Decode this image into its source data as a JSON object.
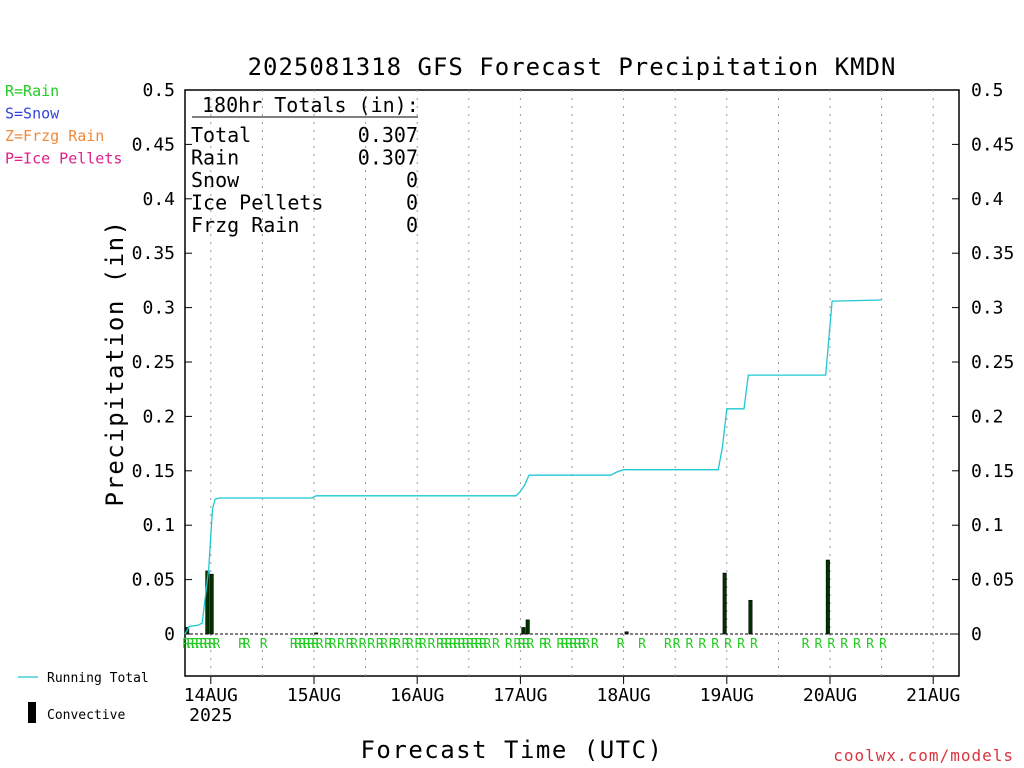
{
  "chart_data": {
    "type": "bar",
    "title": "2025081318 GFS Forecast Precipitation KMDN",
    "ylabel": "Precipitation (in)",
    "xlabel": "Forecast Time (UTC)",
    "ylim": [
      0,
      0.5
    ],
    "yticks": [
      "0",
      "0.05",
      "0.1",
      "0.15",
      "0.2",
      "0.25",
      "0.3",
      "0.35",
      "0.4",
      "0.45",
      "0.5"
    ],
    "xlim_hours": [
      18,
      180
    ],
    "xticks": [
      {
        "hour": 24,
        "label": "14AUG",
        "sub": "2025"
      },
      {
        "hour": 48,
        "label": "15AUG",
        "sub": ""
      },
      {
        "hour": 72,
        "label": "16AUG",
        "sub": ""
      },
      {
        "hour": 96,
        "label": "17AUG",
        "sub": ""
      },
      {
        "hour": 120,
        "label": "18AUG",
        "sub": ""
      },
      {
        "hour": 144,
        "label": "19AUG",
        "sub": ""
      },
      {
        "hour": 168,
        "label": "20AUG",
        "sub": ""
      },
      {
        "hour": 192,
        "label": "21AUG",
        "sub": ""
      }
    ],
    "grid": "vertical dotted every 12h",
    "ptype_legend": [
      {
        "text": "R=Rain",
        "color": "#22cc22"
      },
      {
        "text": "S=Snow",
        "color": "#3344dd"
      },
      {
        "text": "Z=Frzg Rain",
        "color": "#f0883a"
      },
      {
        "text": "P=Ice Pellets",
        "color": "#e0208a"
      }
    ],
    "totals": {
      "heading": "180hr Totals (in):",
      "rows": [
        {
          "label": "Total",
          "value": "0.307"
        },
        {
          "label": "Rain",
          "value": "0.307"
        },
        {
          "label": "Snow",
          "value": "0"
        },
        {
          "label": "Ice Pellets",
          "value": "0"
        },
        {
          "label": "Frzg Rain",
          "value": "0"
        }
      ]
    },
    "series": [
      {
        "name": "Running Total",
        "type": "line",
        "color": "#1ec8d2",
        "points": [
          [
            18,
            0
          ],
          [
            19,
            0.007
          ],
          [
            21,
            0.008
          ],
          [
            22,
            0.01
          ],
          [
            23.5,
            0.06
          ],
          [
            24.4,
            0.115
          ],
          [
            25,
            0.124
          ],
          [
            26,
            0.125
          ],
          [
            47.5,
            0.125
          ],
          [
            48.5,
            0.127
          ],
          [
            95,
            0.127
          ],
          [
            96,
            0.131
          ],
          [
            97,
            0.137
          ],
          [
            98,
            0.146
          ],
          [
            117,
            0.146
          ],
          [
            118.5,
            0.149
          ],
          [
            120,
            0.151
          ],
          [
            142,
            0.151
          ],
          [
            143,
            0.172
          ],
          [
            144,
            0.207
          ],
          [
            148,
            0.207
          ],
          [
            149,
            0.238
          ],
          [
            167,
            0.238
          ],
          [
            168.5,
            0.306
          ],
          [
            180,
            0.307
          ]
        ]
      },
      {
        "name": "Convective",
        "type": "bar",
        "color": "#000000",
        "bars": [
          {
            "hour": 18.5,
            "value": 0.006
          },
          {
            "hour": 23.2,
            "value": 0.058
          },
          {
            "hour": 24.2,
            "value": 0.055
          },
          {
            "hour": 48.5,
            "value": 0.001
          },
          {
            "hour": 96.7,
            "value": 0.006
          },
          {
            "hour": 97.7,
            "value": 0.013
          },
          {
            "hour": 120.7,
            "value": 0.002
          },
          {
            "hour": 143.5,
            "value": 0.056
          },
          {
            "hour": 149.5,
            "value": 0.031
          },
          {
            "hour": 167.5,
            "value": 0.068
          }
        ]
      }
    ],
    "rain_markers": [
      18.3,
      19.3,
      20.3,
      21.3,
      22.3,
      23.3,
      24.3,
      25.3,
      31.3,
      32.3,
      36.3,
      43.3,
      44.3,
      45.3,
      46.3,
      47.3,
      48.3,
      49.3,
      51.3,
      52.3,
      54.3,
      56.3,
      57.3,
      59.3,
      61.3,
      63.3,
      64.3,
      66.3,
      67.3,
      69.3,
      70.3,
      72.3,
      73.3,
      75.3,
      77.3,
      78.3,
      79.3,
      80.3,
      81.3,
      82.3,
      83.3,
      84.3,
      85.3,
      86.3,
      87.3,
      88.3,
      90.3,
      93.3,
      95.3,
      96.3,
      97.3,
      98.3,
      101.3,
      102.3,
      105.3,
      106.3,
      107.3,
      108.3,
      109.3,
      110.3,
      111.3,
      113.3,
      119.3,
      124.3,
      130.3,
      132.3,
      135.3,
      138.3,
      141.3,
      144.3,
      147.3,
      150.3,
      162.3,
      165.3,
      168.3,
      171.3,
      174.3,
      177.3,
      180.3
    ],
    "legend_bottom": [
      {
        "text": "Running Total",
        "kind": "line",
        "color": "#1ec8d2"
      },
      {
        "text": "Convective",
        "kind": "bar",
        "color": "#000000"
      }
    ],
    "credit": "coolwx.com/models"
  }
}
